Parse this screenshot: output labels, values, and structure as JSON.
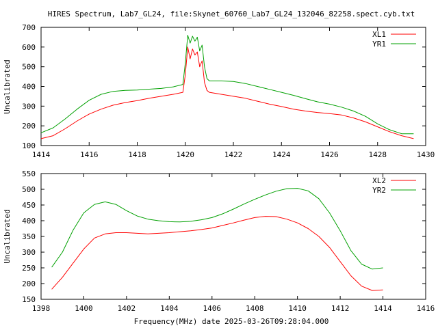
{
  "figure": {
    "title": "HIRES Spectrum, Lab7_GL24, file:Skynet_60760_Lab7_GL24_132046_82258.spect.cyb.txt",
    "xlabel": "Frequency(MHz) date 2025-03-26T09:28:04.000"
  },
  "chart_data": [
    {
      "type": "line",
      "ylabel": "Uncalibrated",
      "xlim": [
        1414,
        1430
      ],
      "ylim": [
        100,
        700
      ],
      "xticks": [
        1414,
        1416,
        1418,
        1420,
        1422,
        1424,
        1426,
        1428,
        1430
      ],
      "yticks": [
        100,
        200,
        300,
        400,
        500,
        600,
        700
      ],
      "grid": false,
      "legend_position": "top-right",
      "series": [
        {
          "name": "XL1",
          "color": "#ff0000",
          "x": [
            1414.0,
            1414.5,
            1415.0,
            1415.5,
            1416.0,
            1416.5,
            1417.0,
            1417.5,
            1418.0,
            1418.5,
            1419.0,
            1419.5,
            1419.9,
            1420.0,
            1420.1,
            1420.2,
            1420.3,
            1420.4,
            1420.5,
            1420.6,
            1420.7,
            1420.8,
            1420.9,
            1421.0,
            1421.5,
            1422.0,
            1422.5,
            1423.0,
            1423.5,
            1424.0,
            1424.5,
            1425.0,
            1425.5,
            1426.0,
            1426.5,
            1427.0,
            1427.5,
            1428.0,
            1428.5,
            1429.0,
            1429.5
          ],
          "values": [
            135,
            150,
            185,
            225,
            260,
            285,
            305,
            318,
            328,
            340,
            350,
            360,
            370,
            460,
            600,
            540,
            590,
            560,
            575,
            500,
            530,
            420,
            380,
            370,
            360,
            350,
            340,
            325,
            310,
            298,
            285,
            275,
            268,
            262,
            255,
            240,
            220,
            195,
            170,
            150,
            135
          ]
        },
        {
          "name": "YR1",
          "color": "#00a000",
          "x": [
            1414.0,
            1414.5,
            1415.0,
            1415.5,
            1416.0,
            1416.5,
            1417.0,
            1417.5,
            1418.0,
            1418.5,
            1419.0,
            1419.5,
            1419.9,
            1420.0,
            1420.1,
            1420.2,
            1420.3,
            1420.4,
            1420.5,
            1420.6,
            1420.7,
            1420.8,
            1420.9,
            1421.0,
            1421.5,
            1422.0,
            1422.5,
            1423.0,
            1423.5,
            1424.0,
            1424.5,
            1425.0,
            1425.5,
            1426.0,
            1426.5,
            1427.0,
            1427.5,
            1428.0,
            1428.5,
            1429.0,
            1429.5
          ],
          "values": [
            165,
            190,
            235,
            285,
            330,
            360,
            375,
            380,
            382,
            386,
            390,
            398,
            410,
            520,
            660,
            620,
            655,
            630,
            650,
            580,
            610,
            500,
            440,
            428,
            428,
            425,
            415,
            400,
            385,
            370,
            355,
            338,
            322,
            310,
            295,
            275,
            248,
            210,
            180,
            160,
            160
          ]
        }
      ]
    },
    {
      "type": "line",
      "ylabel": "Uncalibrated",
      "xlim": [
        1398,
        1416
      ],
      "ylim": [
        150,
        550
      ],
      "xticks": [
        1398,
        1400,
        1402,
        1404,
        1406,
        1408,
        1410,
        1412,
        1414,
        1416
      ],
      "yticks": [
        150,
        200,
        250,
        300,
        350,
        400,
        450,
        500,
        550
      ],
      "grid": false,
      "legend_position": "top-right",
      "series": [
        {
          "name": "XL2",
          "color": "#ff0000",
          "x": [
            1398.5,
            1399.0,
            1399.5,
            1400.0,
            1400.5,
            1401.0,
            1401.5,
            1402.0,
            1402.5,
            1403.0,
            1403.5,
            1404.0,
            1404.5,
            1405.0,
            1405.5,
            1406.0,
            1406.5,
            1407.0,
            1407.5,
            1408.0,
            1408.5,
            1409.0,
            1409.5,
            1410.0,
            1410.5,
            1411.0,
            1411.5,
            1412.0,
            1412.5,
            1413.0,
            1413.5,
            1414.0
          ],
          "values": [
            182,
            220,
            265,
            310,
            345,
            358,
            362,
            362,
            360,
            358,
            360,
            362,
            365,
            368,
            372,
            377,
            385,
            393,
            402,
            410,
            414,
            413,
            405,
            393,
            375,
            350,
            315,
            270,
            225,
            192,
            178,
            180
          ]
        },
        {
          "name": "YR2",
          "color": "#00a000",
          "x": [
            1398.5,
            1399.0,
            1399.5,
            1400.0,
            1400.5,
            1401.0,
            1401.5,
            1402.0,
            1402.5,
            1403.0,
            1403.5,
            1404.0,
            1404.5,
            1405.0,
            1405.5,
            1406.0,
            1406.5,
            1407.0,
            1407.5,
            1408.0,
            1408.5,
            1409.0,
            1409.5,
            1410.0,
            1410.5,
            1411.0,
            1411.5,
            1412.0,
            1412.5,
            1413.0,
            1413.5,
            1414.0
          ],
          "values": [
            252,
            300,
            370,
            425,
            452,
            460,
            452,
            432,
            415,
            405,
            400,
            397,
            396,
            398,
            403,
            410,
            422,
            437,
            453,
            468,
            482,
            494,
            502,
            503,
            495,
            470,
            425,
            368,
            305,
            262,
            246,
            250
          ]
        }
      ]
    }
  ]
}
